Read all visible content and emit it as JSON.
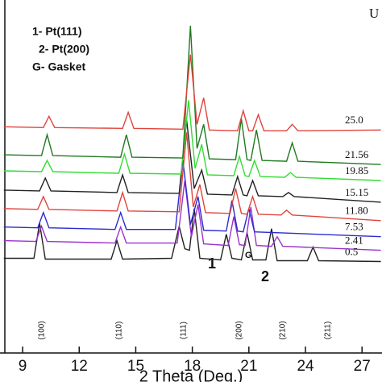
{
  "chart_data": {
    "type": "line",
    "xlabel": "2 Theta (Deg.)",
    "xlim": [
      7.8,
      28.06
    ],
    "xticks": [
      9,
      12,
      15,
      18,
      21,
      24,
      27
    ],
    "ylim": [
      0,
      440
    ],
    "legend_text": [
      "1- Pt(111)",
      "2- Pt(200)",
      "G- Gasket"
    ],
    "corner_text": "U",
    "peak_labels": [
      "(100)",
      "(110)",
      "(111)",
      "(200)",
      "(210)",
      "(211)"
    ],
    "marks": [
      "1",
      "2",
      "G"
    ],
    "series": [
      {
        "name": "0.5",
        "color": "#222222",
        "x": [
          8,
          9.6,
          9.9,
          10.2,
          13.7,
          14.0,
          14.3,
          16.9,
          17.3,
          17.6,
          17.85,
          18.1,
          18.4,
          19.5,
          19.8,
          20.1,
          20.6,
          20.9,
          21.2,
          21.9,
          22.2,
          22.5,
          24.1,
          24.4,
          24.7,
          28
        ],
        "values": [
          118,
          118,
          162,
          117,
          117,
          140,
          117,
          118,
          158,
          130,
          128,
          180,
          118,
          116,
          148,
          118,
          116,
          150,
          116,
          116,
          155,
          115,
          115,
          132,
          115,
          114
        ]
      },
      {
        "name": "2.41",
        "color": "#9933cc",
        "x": [
          8,
          9.7,
          10.0,
          10.3,
          13.9,
          14.2,
          14.5,
          17.2,
          17.6,
          17.95,
          18.3,
          18.6,
          19.9,
          20.2,
          20.5,
          20.8,
          21.1,
          21.4,
          22.2,
          22.5,
          22.8,
          28
        ],
        "values": [
          140,
          139,
          158,
          139,
          137,
          157,
          137,
          137,
          215,
          145,
          185,
          136,
          134,
          170,
          135,
          134,
          182,
          134,
          133,
          145,
          133,
          128
        ]
      },
      {
        "name": "7.53",
        "color": "#2a2ad0",
        "x": [
          8,
          9.8,
          10.1,
          10.4,
          13.9,
          14.2,
          14.5,
          17.1,
          17.5,
          17.9,
          18.3,
          18.6,
          19.8,
          20.1,
          20.4,
          20.7,
          21.0,
          21.3,
          28
        ],
        "values": [
          157,
          156,
          175,
          156,
          154,
          175,
          154,
          154,
          240,
          160,
          195,
          153,
          152,
          190,
          152,
          151,
          180,
          151,
          145
        ]
      },
      {
        "name": "11.80",
        "color": "#e0443c",
        "x": [
          8,
          9.8,
          10.1,
          10.4,
          14.0,
          14.3,
          14.6,
          17.3,
          17.7,
          18.05,
          18.4,
          18.7,
          20.0,
          20.3,
          20.6,
          20.9,
          21.2,
          21.5,
          22.7,
          23.0,
          23.3,
          28
        ],
        "values": [
          180,
          179,
          195,
          179,
          177,
          200,
          177,
          176,
          275,
          182,
          210,
          175,
          174,
          205,
          174,
          173,
          195,
          173,
          172,
          178,
          172,
          165
        ]
      },
      {
        "name": "15.15",
        "color": "#222222",
        "x": [
          8,
          9.9,
          10.2,
          10.5,
          14.0,
          14.3,
          14.6,
          17.3,
          17.7,
          18.1,
          18.5,
          18.8,
          20.1,
          20.4,
          20.7,
          20.9,
          21.2,
          21.5,
          22.8,
          23.1,
          23.4,
          28
        ],
        "values": [
          203,
          202,
          218,
          202,
          200,
          222,
          200,
          199,
          290,
          205,
          228,
          198,
          197,
          220,
          197,
          196,
          215,
          196,
          195,
          200,
          195,
          188
        ]
      },
      {
        "name": "19.85",
        "color": "#33dd33",
        "x": [
          8,
          10.0,
          10.3,
          10.6,
          14.1,
          14.4,
          14.7,
          17.4,
          17.8,
          18.15,
          18.5,
          18.8,
          20.2,
          20.5,
          20.8,
          21.0,
          21.3,
          21.6,
          22.9,
          23.2,
          23.5,
          28
        ],
        "values": [
          227,
          226,
          240,
          226,
          224,
          248,
          224,
          223,
          315,
          230,
          260,
          222,
          221,
          245,
          221,
          220,
          240,
          220,
          219,
          225,
          219,
          215
        ]
      },
      {
        "name": "21.56",
        "color": "#1f7a1f",
        "x": [
          8,
          10.0,
          10.3,
          10.6,
          14.2,
          14.5,
          14.8,
          17.5,
          17.9,
          18.25,
          18.6,
          18.9,
          20.3,
          20.6,
          20.9,
          21.1,
          21.4,
          21.7,
          23.0,
          23.3,
          23.6,
          28
        ],
        "values": [
          247,
          246,
          272,
          246,
          244,
          272,
          244,
          243,
          408,
          255,
          285,
          242,
          241,
          292,
          241,
          240,
          278,
          240,
          239,
          262,
          239,
          235
        ]
      },
      {
        "name": "25.0",
        "color": "#e0443c",
        "x": [
          8,
          10.1,
          10.4,
          10.7,
          14.3,
          14.6,
          14.9,
          17.5,
          17.9,
          18.25,
          18.6,
          18.9,
          20.4,
          20.7,
          21.0,
          21.2,
          21.5,
          21.8,
          23.0,
          23.3,
          23.6,
          28
        ],
        "values": [
          282,
          281,
          295,
          281,
          280,
          300,
          280,
          279,
          372,
          285,
          318,
          278,
          277,
          302,
          277,
          277,
          297,
          277,
          277,
          285,
          277,
          278
        ]
      }
    ]
  }
}
